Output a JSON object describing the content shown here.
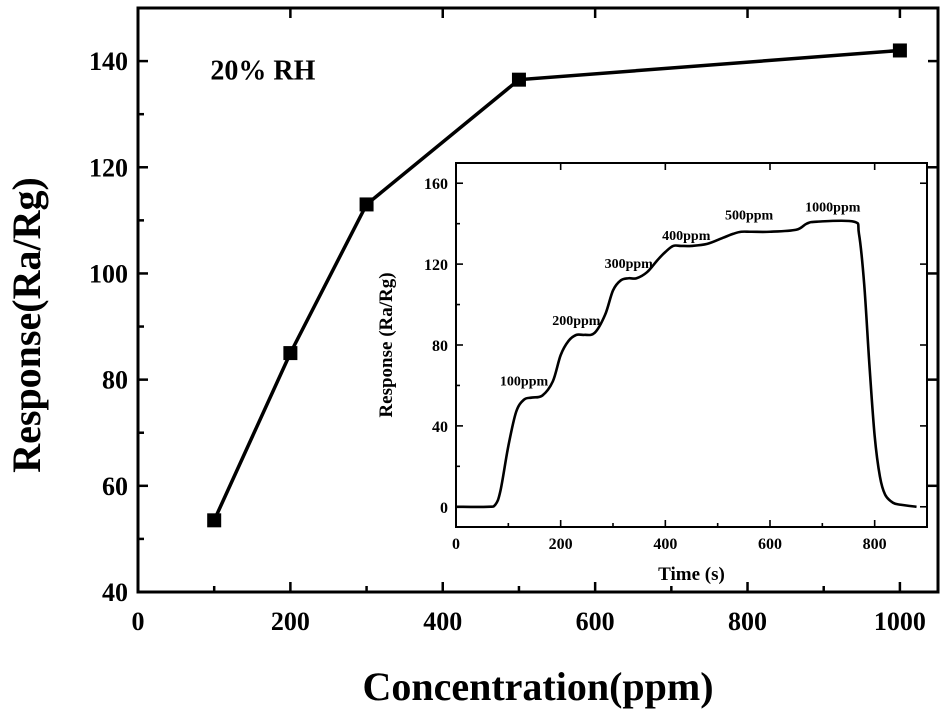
{
  "chart_data": [
    {
      "type": "line",
      "xlabel": "Concentration(ppm)",
      "ylabel": "Response(Ra/Rg)",
      "xlim": [
        0,
        1050
      ],
      "ylim": [
        40,
        150
      ],
      "xticks": [
        0,
        200,
        400,
        600,
        800,
        1000
      ],
      "yticks": [
        40,
        60,
        80,
        100,
        120,
        140
      ],
      "annotation": "20% RH",
      "markers": "square",
      "grid": false,
      "x": [
        100,
        200,
        300,
        500,
        1000
      ],
      "values": [
        53.5,
        85,
        113,
        136.5,
        142
      ]
    },
    {
      "type": "line",
      "xlabel": "Time (s)",
      "ylabel": "Response (Ra/Rg)",
      "xlim": [
        0,
        900
      ],
      "ylim": [
        -10,
        170
      ],
      "xticks": [
        0,
        200,
        400,
        600,
        800
      ],
      "yticks": [
        0,
        40,
        80,
        120,
        160
      ],
      "grid": false,
      "annotations": [
        {
          "text": "100ppm",
          "x": 130,
          "y": 60
        },
        {
          "text": "200ppm",
          "x": 230,
          "y": 90
        },
        {
          "text": "300ppm",
          "x": 330,
          "y": 118
        },
        {
          "text": "400ppm",
          "x": 440,
          "y": 132
        },
        {
          "text": "500ppm",
          "x": 560,
          "y": 142
        },
        {
          "text": "1000ppm",
          "x": 720,
          "y": 146
        }
      ],
      "x": [
        0,
        60,
        75,
        85,
        100,
        115,
        130,
        145,
        165,
        185,
        200,
        215,
        230,
        245,
        265,
        285,
        300,
        315,
        330,
        345,
        365,
        385,
        400,
        415,
        430,
        450,
        480,
        510,
        530,
        545,
        565,
        600,
        650,
        670,
        690,
        760,
        770,
        780,
        790,
        800,
        810,
        820,
        835,
        850,
        880
      ],
      "values": [
        0,
        0,
        1,
        8,
        30,
        47,
        53,
        54,
        55,
        62,
        75,
        82,
        85,
        85,
        86,
        95,
        107,
        112,
        113,
        113,
        116,
        122,
        126,
        129,
        129,
        129,
        130,
        133,
        135,
        136,
        136,
        136,
        137,
        140,
        141,
        141,
        135,
        110,
        70,
        35,
        15,
        6,
        2,
        1,
        0
      ]
    }
  ]
}
